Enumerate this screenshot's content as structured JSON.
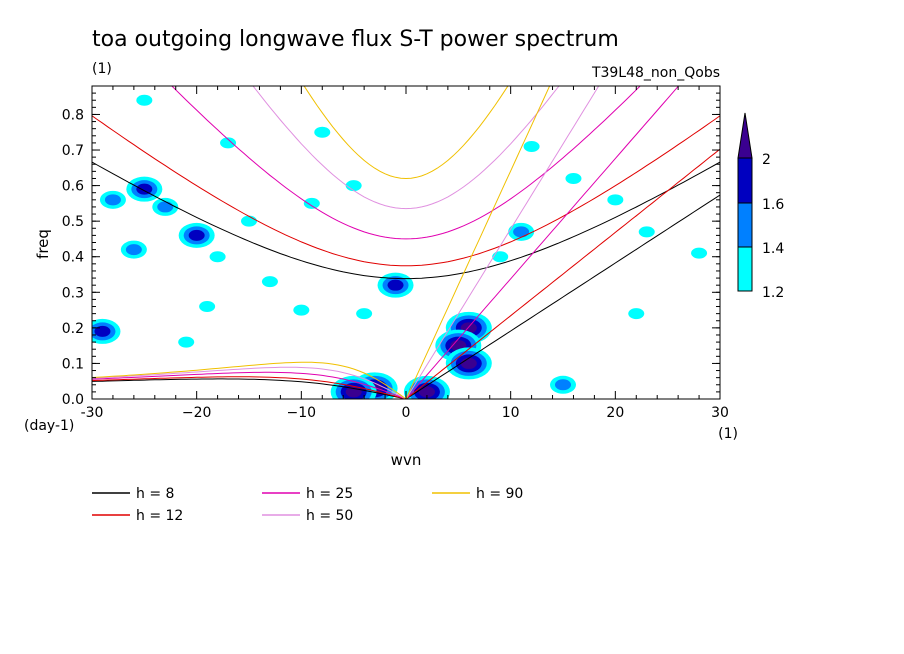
{
  "chart_data": {
    "type": "heatmap",
    "title": "toa outgoing longwave flux S-T power spectrum",
    "subtitle_left": "(1)",
    "subtitle_right": "T39L48_non_Qobs",
    "xlabel": "wvn",
    "ylabel": "freq",
    "x_unit_label": "(1)",
    "y_unit_label": "(day-1)",
    "xlim": [
      -30,
      30
    ],
    "ylim": [
      0,
      0.88
    ],
    "xticks": [
      -30,
      -20,
      -10,
      0,
      10,
      20,
      30
    ],
    "xtick_labels": [
      "-30",
      "−20",
      "−10",
      "0",
      "10",
      "20",
      "30"
    ],
    "yticks": [
      0,
      0.1,
      0.2,
      0.3,
      0.4,
      0.5,
      0.6,
      0.7,
      0.8
    ],
    "ytick_labels": [
      "0.0",
      "0.1",
      "0.2",
      "0.3",
      "0.4",
      "0.5",
      "0.6",
      "0.7",
      "0.8"
    ],
    "colorbar": {
      "levels": [
        1.2,
        1.4,
        1.6,
        2
      ],
      "labels": [
        "1.2",
        "1.4",
        "1.6",
        "2"
      ],
      "colors": [
        "#00ffff",
        "#0080ff",
        "#0000c0",
        "#3a0090"
      ]
    },
    "dispersion_curves": [
      {
        "label": "h =  8",
        "h": 8,
        "color": "#000000"
      },
      {
        "label": "h = 12",
        "h": 12,
        "color": "#e00000"
      },
      {
        "label": "h = 25",
        "h": 25,
        "color": "#e000b0"
      },
      {
        "label": "h = 50",
        "h": 50,
        "color": "#e090e0"
      },
      {
        "label": "h = 90",
        "h": 90,
        "color": "#f0c000"
      }
    ],
    "legend_position": "bottom-left",
    "power_regions": [
      {
        "x": 6,
        "y": 0.2,
        "level": 2
      },
      {
        "x": 5,
        "y": 0.15,
        "level": 2
      },
      {
        "x": 6,
        "y": 0.1,
        "level": 2
      },
      {
        "x": 2,
        "y": 0.02,
        "level": 2
      },
      {
        "x": -3,
        "y": 0.03,
        "level": 2
      },
      {
        "x": -5,
        "y": 0.02,
        "level": 2
      },
      {
        "x": -25,
        "y": 0.59,
        "level": 1.6
      },
      {
        "x": -20,
        "y": 0.46,
        "level": 1.6
      },
      {
        "x": -29,
        "y": 0.19,
        "level": 1.6
      },
      {
        "x": -1,
        "y": 0.32,
        "level": 1.6
      },
      {
        "x": 11,
        "y": 0.47,
        "level": 1.4
      },
      {
        "x": -28,
        "y": 0.56,
        "level": 1.4
      },
      {
        "x": -23,
        "y": 0.54,
        "level": 1.4
      },
      {
        "x": -26,
        "y": 0.42,
        "level": 1.4
      },
      {
        "x": -18,
        "y": 0.4,
        "level": 1.2
      },
      {
        "x": -13,
        "y": 0.33,
        "level": 1.2
      },
      {
        "x": -19,
        "y": 0.26,
        "level": 1.2
      },
      {
        "x": -10,
        "y": 0.25,
        "level": 1.2
      },
      {
        "x": -4,
        "y": 0.24,
        "level": 1.2
      },
      {
        "x": -15,
        "y": 0.5,
        "level": 1.2
      },
      {
        "x": -9,
        "y": 0.55,
        "level": 1.2
      },
      {
        "x": -5,
        "y": 0.6,
        "level": 1.2
      },
      {
        "x": 16,
        "y": 0.62,
        "level": 1.2
      },
      {
        "x": 12,
        "y": 0.71,
        "level": 1.2
      },
      {
        "x": 20,
        "y": 0.56,
        "level": 1.2
      },
      {
        "x": 23,
        "y": 0.47,
        "level": 1.2
      },
      {
        "x": 9,
        "y": 0.4,
        "level": 1.2
      },
      {
        "x": -25,
        "y": 0.84,
        "level": 1.2
      },
      {
        "x": -17,
        "y": 0.72,
        "level": 1.2
      },
      {
        "x": 22,
        "y": 0.24,
        "level": 1.2
      },
      {
        "x": 28,
        "y": 0.41,
        "level": 1.2
      },
      {
        "x": 15,
        "y": 0.04,
        "level": 1.4
      },
      {
        "x": -8,
        "y": 0.75,
        "level": 1.2
      },
      {
        "x": -21,
        "y": 0.16,
        "level": 1.2
      }
    ]
  }
}
